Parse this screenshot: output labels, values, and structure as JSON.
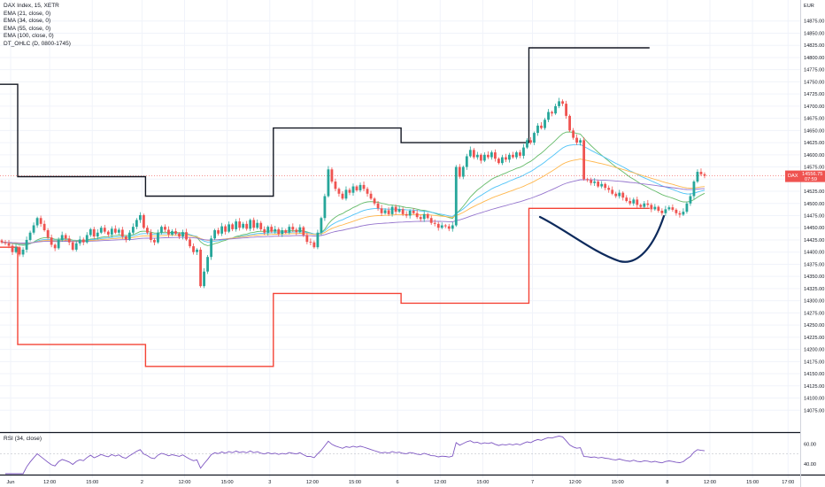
{
  "legend": {
    "symbol": "DAX Index, 15, XETR",
    "indicators": [
      "EMA (21, close, 0)",
      "EMA (34, close, 0)",
      "EMA (55, close, 0)",
      "EMA (100, close, 0)",
      "DT_OHLC (D, 0800-1745)"
    ]
  },
  "rsi_legend": "RSI (34, close)",
  "currency_label": "EUR",
  "colors": {
    "up": "#26a69a",
    "down": "#ef5350",
    "ema21": "#66bb6a",
    "ema34": "#4fc3f7",
    "ema55": "#ffb74d",
    "ema100": "#9575cd",
    "dt_high": "#131722",
    "dt_low": "#f44336",
    "rsi": "#7e57c2",
    "drawing": "#0d2a5c",
    "panel_border": "#131722"
  },
  "price_tag": {
    "label": "DAX",
    "price": "14556.75",
    "countdown": "07:59"
  },
  "chart_data": {
    "type": "candlestick",
    "title": "DAX Index, 15, XETR",
    "ylabel": "EUR",
    "ylim": [
      14050,
      14900
    ],
    "y_ticks": [
      14075,
      14100,
      14125,
      14150,
      14175,
      14200,
      14225,
      14250,
      14275,
      14300,
      14325,
      14350,
      14375,
      14400,
      14425,
      14450,
      14475,
      14500,
      14525,
      14550,
      14575,
      14600,
      14625,
      14650,
      14675,
      14700,
      14725,
      14750,
      14775,
      14800,
      14825,
      14850,
      14875
    ],
    "x_tick_labels": [
      {
        "label": "Jun",
        "slot": 3
      },
      {
        "label": "12:00",
        "slot": 14
      },
      {
        "label": "15:00",
        "slot": 26
      },
      {
        "label": "2",
        "slot": 40
      },
      {
        "label": "12:00",
        "slot": 52
      },
      {
        "label": "15:00",
        "slot": 64
      },
      {
        "label": "3",
        "slot": 76
      },
      {
        "label": "12:00",
        "slot": 88
      },
      {
        "label": "15:00",
        "slot": 100
      },
      {
        "label": "6",
        "slot": 112
      },
      {
        "label": "12:00",
        "slot": 124
      },
      {
        "label": "15:00",
        "slot": 136
      },
      {
        "label": "7",
        "slot": 150
      },
      {
        "label": "12:00",
        "slot": 162
      },
      {
        "label": "15:00",
        "slot": 174
      },
      {
        "label": "8",
        "slot": 188
      },
      {
        "label": "12:00",
        "slot": 200
      },
      {
        "label": "15:00",
        "slot": 212
      },
      {
        "label": "17:00",
        "slot": 222
      }
    ],
    "dt_high_segments": [
      {
        "from": 0,
        "to": 5,
        "value": 14745
      },
      {
        "from": 5,
        "to": 41,
        "value": 14555
      },
      {
        "from": 41,
        "to": 77,
        "value": 14515
      },
      {
        "from": 77,
        "to": 113,
        "value": 14655
      },
      {
        "from": 113,
        "to": 149,
        "value": 14625
      },
      {
        "from": 149,
        "to": 183,
        "value": 14820
      }
    ],
    "dt_low_segments": [
      {
        "from": 0,
        "to": 5,
        "value": 14410
      },
      {
        "from": 5,
        "to": 41,
        "value": 14210
      },
      {
        "from": 41,
        "to": 77,
        "value": 14165
      },
      {
        "from": 77,
        "to": 113,
        "value": 14315
      },
      {
        "from": 113,
        "to": 149,
        "value": 14295
      },
      {
        "from": 149,
        "to": 183,
        "value": 14490
      }
    ],
    "session_closes": [
      [
        14420,
        14418,
        14413,
        14400,
        14410,
        14395,
        14405,
        14425,
        14440,
        14455,
        14470,
        14458,
        14445,
        14430,
        14415,
        14408,
        14425,
        14435,
        14428,
        14420
      ],
      [
        14405,
        14418,
        14426,
        14420,
        14435,
        14447,
        14432,
        14440,
        14450,
        14442,
        14436,
        14448,
        14440,
        14446,
        14432,
        14426,
        14440,
        14452,
        14466,
        14476,
        14450,
        14440,
        14425,
        14420,
        14440,
        14452,
        14446,
        14436,
        14443,
        14438,
        14432,
        14441,
        14426,
        14412,
        14400,
        14405
      ],
      [
        14330,
        14360,
        14390,
        14428,
        14445,
        14438,
        14453,
        14442,
        14457,
        14447,
        14463,
        14450,
        14458,
        14448,
        14466,
        14450,
        14460,
        14447,
        14440,
        14452,
        14442,
        14447,
        14437,
        14445,
        14440,
        14452,
        14446,
        14441,
        14451,
        14435,
        14421,
        14420,
        14410,
        14440,
        14470,
        14515
      ],
      [
        14570,
        14545,
        14530,
        14520,
        14510,
        14528,
        14522,
        14535,
        14527,
        14538,
        14530,
        14520,
        14510,
        14500,
        14490,
        14480,
        14486,
        14478,
        14493,
        14483,
        14488,
        14478,
        14475,
        14485,
        14480,
        14472,
        14468,
        14478,
        14470,
        14460,
        14458,
        14450,
        14455,
        14453,
        14448,
        14455
      ],
      [
        14575,
        14555,
        14575,
        14597,
        14610,
        14595,
        14600,
        14588,
        14600,
        14595,
        14605,
        14592,
        14583,
        14595,
        14590,
        14600,
        14595,
        14605,
        14598,
        14615,
        14630,
        14625,
        14645,
        14660,
        14655,
        14672,
        14688,
        14685,
        14700,
        14710,
        14705,
        14680,
        14650,
        14635,
        14625,
        14630
      ],
      [
        14550,
        14548,
        14542,
        14545,
        14535,
        14540,
        14532,
        14528,
        14520,
        14515,
        14522,
        14512,
        14505,
        14500,
        14508,
        14497,
        14493,
        14500,
        14497,
        14488,
        14493,
        14485,
        14480,
        14488,
        14492,
        14487,
        14480,
        14477,
        14483,
        14500,
        14515,
        14545,
        14565,
        14560,
        14557
      ]
    ],
    "last_price": 14556.75,
    "rsi": {
      "ylim": [
        30,
        70
      ],
      "y_ticks": [
        40,
        60
      ],
      "mid_line": 50
    }
  }
}
